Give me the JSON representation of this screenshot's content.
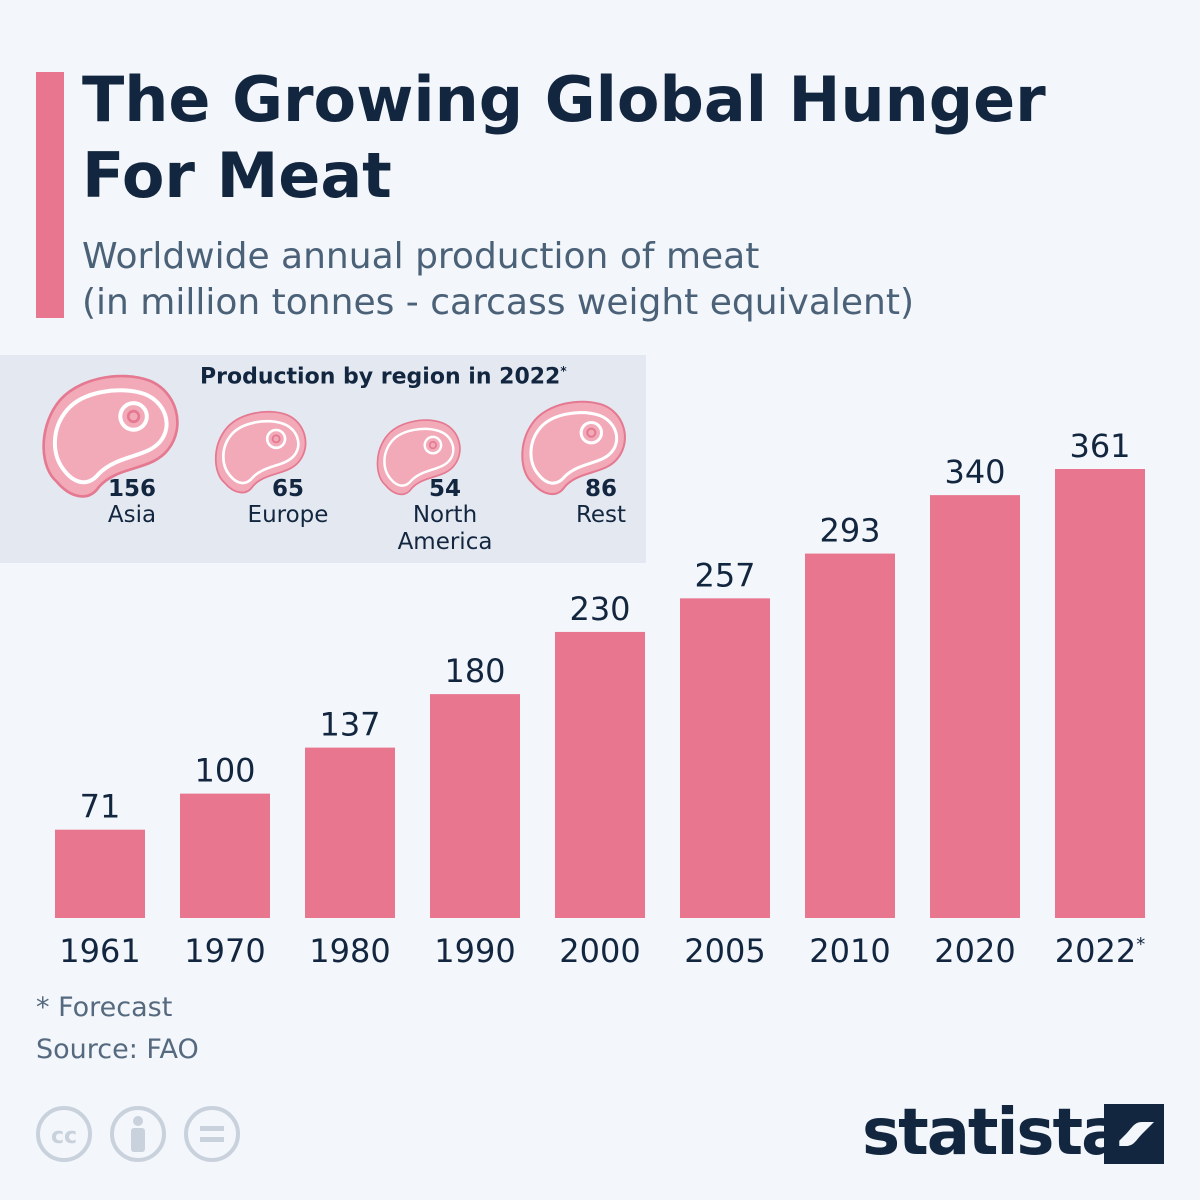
{
  "title": "The Growing Global Hunger For Meat",
  "subtitle_line1": "Worldwide annual production of meat",
  "subtitle_line2": "(in million tonnes - carcass weight equivalent)",
  "regions": {
    "heading": "Production by region in 2022",
    "heading_mark": "*",
    "items": [
      {
        "value": "156",
        "name_line1": "Asia",
        "name_line2": ""
      },
      {
        "value": "65",
        "name_line1": "Europe",
        "name_line2": ""
      },
      {
        "value": "54",
        "name_line1": "North",
        "name_line2": "America"
      },
      {
        "value": "86",
        "name_line1": "Rest",
        "name_line2": ""
      }
    ]
  },
  "chart_data": {
    "type": "bar",
    "title": "Worldwide annual production of meat",
    "ylabel": "million tonnes - carcass weight equivalent",
    "categories": [
      "1961",
      "1970",
      "1980",
      "1990",
      "2000",
      "2005",
      "2010",
      "2020",
      "2022*"
    ],
    "values": [
      71,
      100,
      137,
      180,
      230,
      257,
      293,
      340,
      361
    ],
    "ylim": [
      0,
      361
    ],
    "grid": false
  },
  "footnote": "* Forecast",
  "source": "Source: FAO",
  "brand": "statista",
  "colors": {
    "bar": "#e8768f",
    "accent": "#e8768f",
    "text": "#13263f",
    "muted": "#55697f"
  }
}
